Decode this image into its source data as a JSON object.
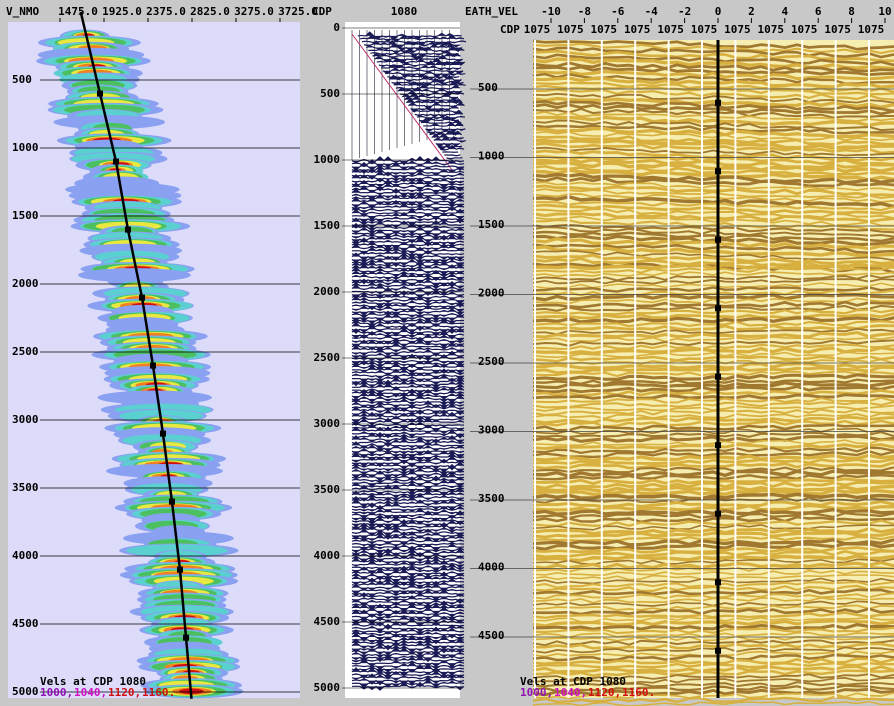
{
  "semblance": {
    "x_label": "V_NMO",
    "xticks": [
      {
        "value": 1475,
        "label": "1475.0"
      },
      {
        "value": 1925,
        "label": "1925.0"
      },
      {
        "value": 2375,
        "label": "2375.0"
      },
      {
        "value": 2825,
        "label": "2825.0"
      },
      {
        "value": 3275,
        "label": "3275.0"
      },
      {
        "value": 3725,
        "label": "3725.0"
      }
    ],
    "yticks": [
      500,
      1000,
      1500,
      2000,
      2500,
      3000,
      3500,
      4000,
      4500,
      5000
    ],
    "pick_times": [
      600,
      1100,
      1600,
      2100,
      2600,
      3100,
      3600,
      4100,
      4600
    ],
    "pick_velocities": [
      1884,
      2048,
      2170,
      2314,
      2426,
      2528,
      2620,
      2702,
      2764
    ],
    "caption": "Vels at CDP 1080",
    "cdp_list": [
      "1000,",
      "1040,",
      "1120,",
      "1160."
    ]
  },
  "gather": {
    "label": "CDP",
    "cdp": "1080",
    "yticks": [
      0,
      500,
      1000,
      1500,
      2000,
      2500,
      3000,
      3500,
      4000,
      4500,
      5000
    ]
  },
  "stack": {
    "x_label": "EATH_VEL",
    "xticks": [
      -10,
      -8,
      -6,
      -4,
      -2,
      0,
      2,
      4,
      6,
      8,
      10
    ],
    "row_label": "CDP",
    "cdp_labels": [
      "1075",
      "1075",
      "1075",
      "1075",
      "1075",
      "1075",
      "1075",
      "1075",
      "1075",
      "1075",
      "1075"
    ],
    "yticks": [
      500,
      1000,
      1500,
      2000,
      2500,
      3000,
      3500,
      4000,
      4500
    ],
    "caption": "Vels at CDP 1080",
    "cdp_list": [
      "1000,",
      "1040,",
      "1120,",
      "1160."
    ]
  }
}
